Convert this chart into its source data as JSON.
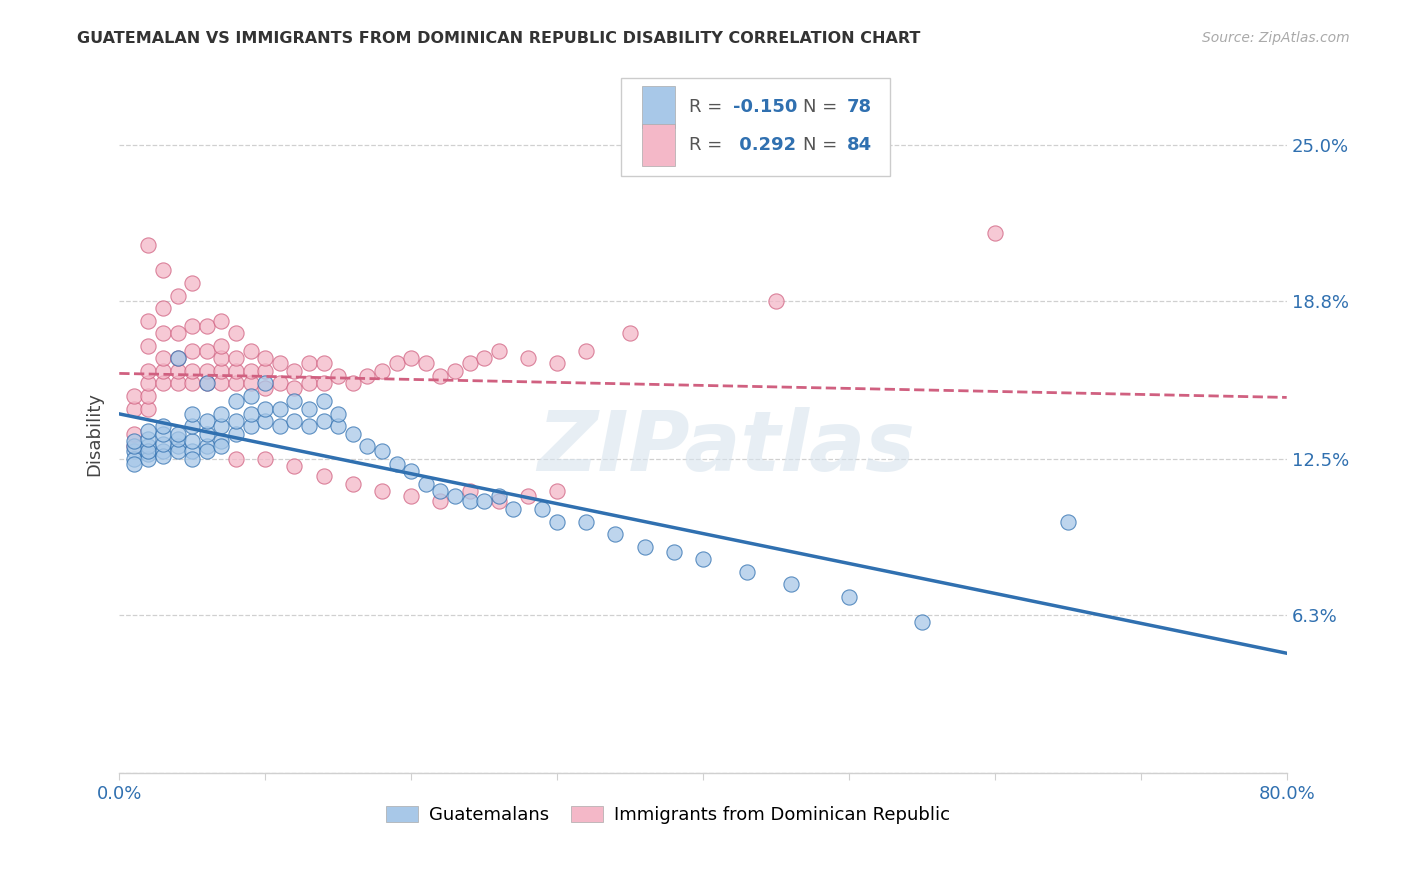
{
  "title": "GUATEMALAN VS IMMIGRANTS FROM DOMINICAN REPUBLIC DISABILITY CORRELATION CHART",
  "source": "Source: ZipAtlas.com",
  "ylabel": "Disability",
  "ytick_vals": [
    0.0,
    0.063,
    0.125,
    0.188,
    0.25
  ],
  "ytick_labels": [
    "",
    "6.3%",
    "12.5%",
    "18.8%",
    "25.0%"
  ],
  "xlim": [
    0.0,
    0.8
  ],
  "ylim": [
    0.0,
    0.27
  ],
  "blue_color": "#a8c8e8",
  "pink_color": "#f4b8c8",
  "blue_line_color": "#3070b0",
  "pink_line_color": "#d06080",
  "watermark": "ZIPatlas",
  "background_color": "#ffffff",
  "grid_color": "#d0d0d0",
  "blue_scatter_x": [
    0.01,
    0.01,
    0.01,
    0.01,
    0.01,
    0.02,
    0.02,
    0.02,
    0.02,
    0.02,
    0.02,
    0.03,
    0.03,
    0.03,
    0.03,
    0.03,
    0.04,
    0.04,
    0.04,
    0.04,
    0.04,
    0.05,
    0.05,
    0.05,
    0.05,
    0.05,
    0.06,
    0.06,
    0.06,
    0.06,
    0.06,
    0.07,
    0.07,
    0.07,
    0.07,
    0.08,
    0.08,
    0.08,
    0.09,
    0.09,
    0.09,
    0.1,
    0.1,
    0.1,
    0.11,
    0.11,
    0.12,
    0.12,
    0.13,
    0.13,
    0.14,
    0.14,
    0.15,
    0.15,
    0.16,
    0.17,
    0.18,
    0.19,
    0.2,
    0.21,
    0.22,
    0.23,
    0.24,
    0.25,
    0.26,
    0.27,
    0.29,
    0.3,
    0.32,
    0.34,
    0.36,
    0.38,
    0.4,
    0.43,
    0.46,
    0.5,
    0.55,
    0.65
  ],
  "blue_scatter_y": [
    0.128,
    0.125,
    0.123,
    0.13,
    0.132,
    0.127,
    0.125,
    0.13,
    0.128,
    0.133,
    0.136,
    0.128,
    0.126,
    0.131,
    0.135,
    0.138,
    0.13,
    0.128,
    0.133,
    0.135,
    0.165,
    0.128,
    0.125,
    0.132,
    0.138,
    0.143,
    0.13,
    0.128,
    0.135,
    0.14,
    0.155,
    0.132,
    0.13,
    0.138,
    0.143,
    0.135,
    0.14,
    0.148,
    0.138,
    0.143,
    0.15,
    0.14,
    0.145,
    0.155,
    0.138,
    0.145,
    0.14,
    0.148,
    0.138,
    0.145,
    0.14,
    0.148,
    0.138,
    0.143,
    0.135,
    0.13,
    0.128,
    0.123,
    0.12,
    0.115,
    0.112,
    0.11,
    0.108,
    0.108,
    0.11,
    0.105,
    0.105,
    0.1,
    0.1,
    0.095,
    0.09,
    0.088,
    0.085,
    0.08,
    0.075,
    0.07,
    0.06,
    0.1
  ],
  "pink_scatter_x": [
    0.01,
    0.01,
    0.01,
    0.01,
    0.02,
    0.02,
    0.02,
    0.02,
    0.02,
    0.02,
    0.02,
    0.03,
    0.03,
    0.03,
    0.03,
    0.03,
    0.03,
    0.04,
    0.04,
    0.04,
    0.04,
    0.04,
    0.05,
    0.05,
    0.05,
    0.05,
    0.05,
    0.06,
    0.06,
    0.06,
    0.06,
    0.07,
    0.07,
    0.07,
    0.07,
    0.07,
    0.08,
    0.08,
    0.08,
    0.08,
    0.09,
    0.09,
    0.09,
    0.1,
    0.1,
    0.1,
    0.11,
    0.11,
    0.12,
    0.12,
    0.13,
    0.13,
    0.14,
    0.14,
    0.15,
    0.16,
    0.17,
    0.18,
    0.19,
    0.2,
    0.21,
    0.22,
    0.23,
    0.24,
    0.25,
    0.26,
    0.28,
    0.3,
    0.32,
    0.35,
    0.2,
    0.22,
    0.24,
    0.26,
    0.28,
    0.3,
    0.08,
    0.1,
    0.12,
    0.14,
    0.16,
    0.18,
    0.45,
    0.6
  ],
  "pink_scatter_y": [
    0.13,
    0.135,
    0.145,
    0.15,
    0.145,
    0.15,
    0.155,
    0.16,
    0.17,
    0.18,
    0.21,
    0.155,
    0.16,
    0.165,
    0.175,
    0.185,
    0.2,
    0.155,
    0.16,
    0.165,
    0.175,
    0.19,
    0.155,
    0.16,
    0.168,
    0.178,
    0.195,
    0.155,
    0.16,
    0.168,
    0.178,
    0.155,
    0.16,
    0.165,
    0.17,
    0.18,
    0.155,
    0.16,
    0.165,
    0.175,
    0.155,
    0.16,
    0.168,
    0.153,
    0.16,
    0.165,
    0.155,
    0.163,
    0.153,
    0.16,
    0.155,
    0.163,
    0.155,
    0.163,
    0.158,
    0.155,
    0.158,
    0.16,
    0.163,
    0.165,
    0.163,
    0.158,
    0.16,
    0.163,
    0.165,
    0.168,
    0.165,
    0.163,
    0.168,
    0.175,
    0.11,
    0.108,
    0.112,
    0.108,
    0.11,
    0.112,
    0.125,
    0.125,
    0.122,
    0.118,
    0.115,
    0.112,
    0.188,
    0.215
  ]
}
